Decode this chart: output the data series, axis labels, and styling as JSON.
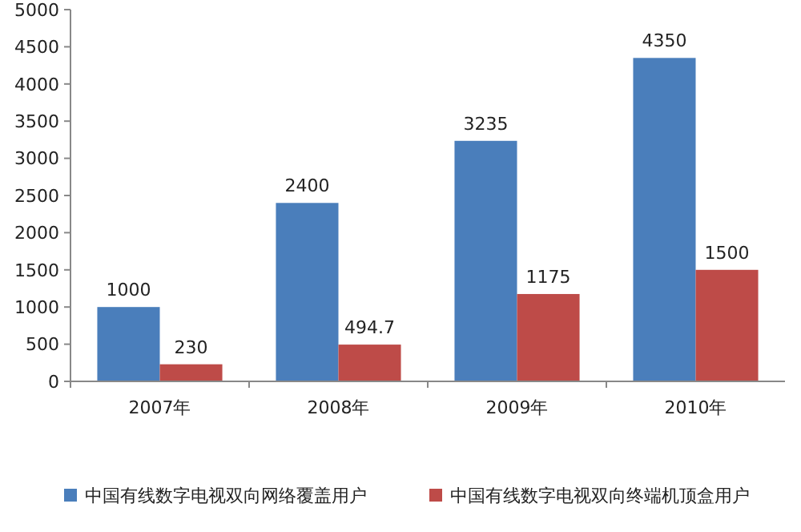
{
  "chart_data": {
    "type": "bar",
    "categories": [
      "2007年",
      "2008年",
      "2009年",
      "2010年"
    ],
    "series": [
      {
        "name": "中国有线数字电视双向网络覆盖用户",
        "color": "#4a7ebb",
        "values": [
          1000,
          2400,
          3235,
          4350
        ]
      },
      {
        "name": "中国有线数字电视双向终端机顶盒用户",
        "color": "#be4b48",
        "values": [
          230,
          494.7,
          1175,
          1500
        ]
      }
    ],
    "ylim": [
      0,
      5000
    ],
    "yticks": [
      0,
      500,
      1000,
      1500,
      2000,
      2500,
      3000,
      3500,
      4000,
      4500,
      5000
    ],
    "data_labels": true,
    "legend": "bottom",
    "grid": false
  }
}
